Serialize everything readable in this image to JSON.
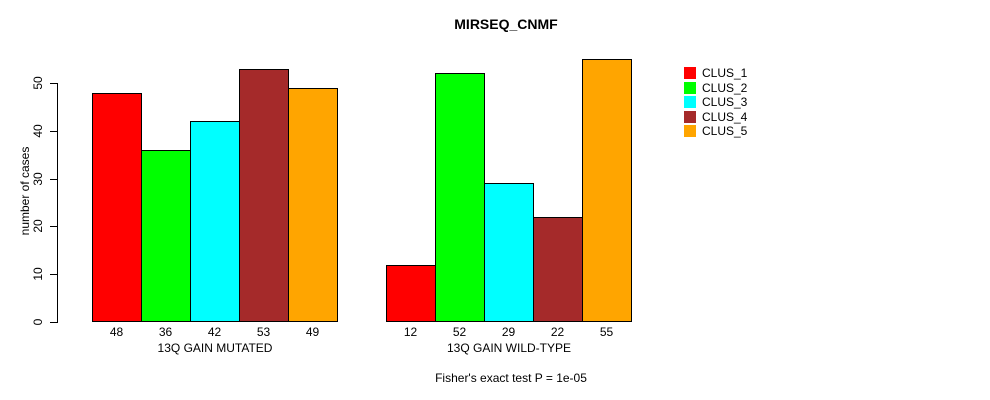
{
  "chart_data": {
    "type": "bar",
    "title": "MIRSEQ_CNMF",
    "ylabel": "number of cases",
    "xlabel": "",
    "ylim": [
      0,
      50
    ],
    "yticks": [
      0,
      10,
      20,
      30,
      40,
      50
    ],
    "grid": false,
    "legend_position": "right",
    "series": [
      {
        "name": "CLUS_1",
        "color": "#FF0000"
      },
      {
        "name": "CLUS_2",
        "color": "#00FF00"
      },
      {
        "name": "CLUS_3",
        "color": "#00FFFF"
      },
      {
        "name": "CLUS_4",
        "color": "#A52A2A"
      },
      {
        "name": "CLUS_5",
        "color": "#FFA500"
      }
    ],
    "groups": [
      {
        "label": "13Q GAIN MUTATED",
        "values": [
          48,
          36,
          42,
          53,
          49
        ]
      },
      {
        "label": "13Q GAIN WILD-TYPE",
        "values": [
          12,
          52,
          29,
          22,
          55
        ]
      }
    ],
    "annotation": "Fisher's exact test P = 1e-05"
  }
}
